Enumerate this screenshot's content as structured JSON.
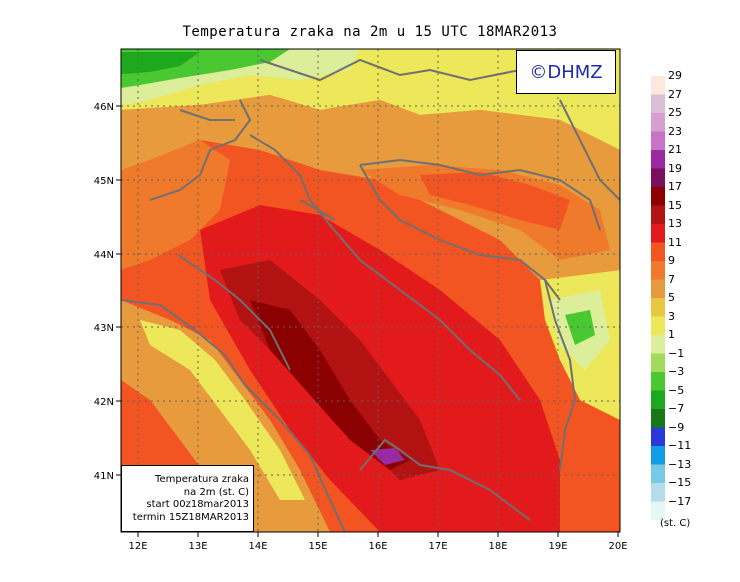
{
  "title": "Temperatura zraka na 2m u 15 UTC 18MAR2013",
  "logo": "©DHMZ",
  "info": {
    "line1": "Temperatura zraka",
    "line2": "na 2m (st. C)",
    "line3": "start 00z18mar2013",
    "line4": "termin 15Z18MAR2013"
  },
  "axes": {
    "x_ticks": [
      "12E",
      "13E",
      "14E",
      "15E",
      "16E",
      "17E",
      "18E",
      "19E",
      "20E"
    ],
    "y_ticks": [
      "41N",
      "42N",
      "43N",
      "44N",
      "45N",
      "46N"
    ]
  },
  "colorbar": {
    "unit": "(st. C)",
    "levels": [
      "29",
      "27",
      "25",
      "23",
      "21",
      "19",
      "17",
      "15",
      "13",
      "11",
      "9",
      "7",
      "5",
      "3",
      "1",
      "−1",
      "−3",
      "−5",
      "−7",
      "−9",
      "−11",
      "−13",
      "−15",
      "−17"
    ],
    "colors": [
      "#fbe9de",
      "#d9bfd6",
      "#d59fd1",
      "#c773c8",
      "#9a2a9f",
      "#7a0f5e",
      "#8b0000",
      "#b21212",
      "#e31a1c",
      "#f25522",
      "#f07a2c",
      "#e89b3c",
      "#e8c840",
      "#ece85a",
      "#dcee9a",
      "#a0dc5a",
      "#4ac832",
      "#1ea81e",
      "#17781a",
      "#2a3ad8",
      "#129ee6",
      "#78c8e6",
      "#b4dcec",
      "#e4f6f6"
    ]
  }
}
